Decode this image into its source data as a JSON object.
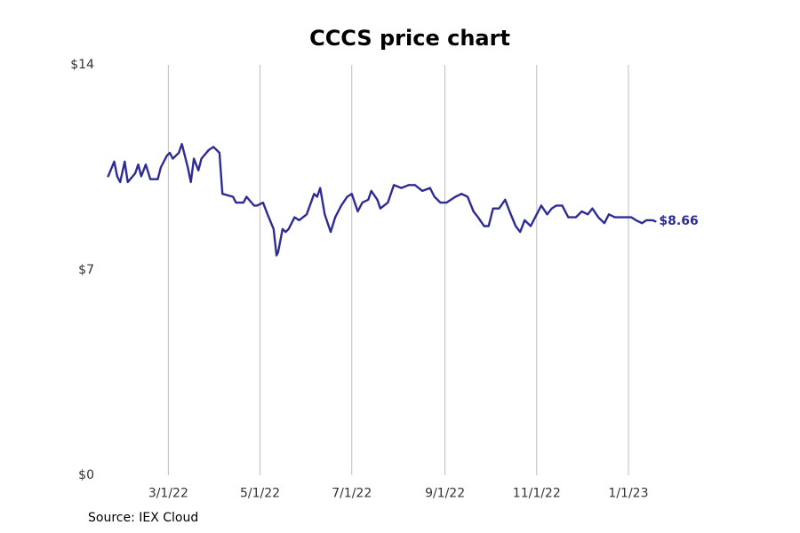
{
  "chart_data": {
    "type": "line",
    "title": "CCCS price chart",
    "source": "Source: IEX Cloud",
    "ylim": [
      0,
      14
    ],
    "y_ticks": [
      {
        "value": 0,
        "label": "$0"
      },
      {
        "value": 7,
        "label": "$7"
      },
      {
        "value": 14,
        "label": "$14"
      }
    ],
    "x_range": [
      "2022-01-19",
      "2023-02-25"
    ],
    "x_ticks": [
      {
        "date": "2022-03-01",
        "label": "3/1/22"
      },
      {
        "date": "2022-05-01",
        "label": "5/1/22"
      },
      {
        "date": "2022-07-01",
        "label": "7/1/22"
      },
      {
        "date": "2022-09-01",
        "label": "9/1/22"
      },
      {
        "date": "2022-11-01",
        "label": "11/1/22"
      },
      {
        "date": "2023-01-01",
        "label": "1/1/23"
      }
    ],
    "grid": "vertical",
    "series": [
      {
        "color": "#2e2b96",
        "end_label": "$8.66",
        "points": [
          [
            "2022-01-20",
            10.2
          ],
          [
            "2022-01-24",
            10.7
          ],
          [
            "2022-01-26",
            10.2
          ],
          [
            "2022-01-28",
            10.0
          ],
          [
            "2022-01-31",
            10.7
          ],
          [
            "2022-02-02",
            10.0
          ],
          [
            "2022-02-07",
            10.3
          ],
          [
            "2022-02-09",
            10.6
          ],
          [
            "2022-02-11",
            10.2
          ],
          [
            "2022-02-14",
            10.6
          ],
          [
            "2022-02-17",
            10.1
          ],
          [
            "2022-02-22",
            10.1
          ],
          [
            "2022-02-24",
            10.5
          ],
          [
            "2022-02-28",
            10.9
          ],
          [
            "2022-03-02",
            11.0
          ],
          [
            "2022-03-04",
            10.8
          ],
          [
            "2022-03-08",
            11.0
          ],
          [
            "2022-03-10",
            11.3
          ],
          [
            "2022-03-14",
            10.5
          ],
          [
            "2022-03-16",
            10.0
          ],
          [
            "2022-03-18",
            10.8
          ],
          [
            "2022-03-21",
            10.4
          ],
          [
            "2022-03-23",
            10.8
          ],
          [
            "2022-03-28",
            11.1
          ],
          [
            "2022-03-31",
            11.2
          ],
          [
            "2022-04-04",
            11.0
          ],
          [
            "2022-04-06",
            9.6
          ],
          [
            "2022-04-13",
            9.5
          ],
          [
            "2022-04-15",
            9.3
          ],
          [
            "2022-04-20",
            9.3
          ],
          [
            "2022-04-22",
            9.5
          ],
          [
            "2022-04-27",
            9.2
          ],
          [
            "2022-04-29",
            9.2
          ],
          [
            "2022-05-03",
            9.3
          ],
          [
            "2022-05-06",
            8.9
          ],
          [
            "2022-05-10",
            8.4
          ],
          [
            "2022-05-12",
            7.5
          ],
          [
            "2022-05-13",
            7.6
          ],
          [
            "2022-05-16",
            8.4
          ],
          [
            "2022-05-18",
            8.3
          ],
          [
            "2022-05-20",
            8.4
          ],
          [
            "2022-05-24",
            8.8
          ],
          [
            "2022-05-27",
            8.7
          ],
          [
            "2022-06-01",
            8.9
          ],
          [
            "2022-06-06",
            9.6
          ],
          [
            "2022-06-08",
            9.5
          ],
          [
            "2022-06-10",
            9.8
          ],
          [
            "2022-06-13",
            8.9
          ],
          [
            "2022-06-17",
            8.3
          ],
          [
            "2022-06-20",
            8.8
          ],
          [
            "2022-06-24",
            9.2
          ],
          [
            "2022-06-28",
            9.5
          ],
          [
            "2022-07-01",
            9.6
          ],
          [
            "2022-07-05",
            9.0
          ],
          [
            "2022-07-08",
            9.3
          ],
          [
            "2022-07-12",
            9.4
          ],
          [
            "2022-07-14",
            9.7
          ],
          [
            "2022-07-18",
            9.4
          ],
          [
            "2022-07-20",
            9.1
          ],
          [
            "2022-07-25",
            9.3
          ],
          [
            "2022-07-29",
            9.9
          ],
          [
            "2022-08-03",
            9.8
          ],
          [
            "2022-08-08",
            9.9
          ],
          [
            "2022-08-12",
            9.9
          ],
          [
            "2022-08-17",
            9.7
          ],
          [
            "2022-08-22",
            9.8
          ],
          [
            "2022-08-25",
            9.5
          ],
          [
            "2022-08-29",
            9.3
          ],
          [
            "2022-09-02",
            9.3
          ],
          [
            "2022-09-08",
            9.5
          ],
          [
            "2022-09-12",
            9.6
          ],
          [
            "2022-09-16",
            9.5
          ],
          [
            "2022-09-20",
            9.0
          ],
          [
            "2022-09-23",
            8.8
          ],
          [
            "2022-09-27",
            8.5
          ],
          [
            "2022-09-30",
            8.5
          ],
          [
            "2022-10-03",
            9.1
          ],
          [
            "2022-10-07",
            9.1
          ],
          [
            "2022-10-11",
            9.4
          ],
          [
            "2022-10-14",
            9.0
          ],
          [
            "2022-10-18",
            8.5
          ],
          [
            "2022-10-21",
            8.3
          ],
          [
            "2022-10-24",
            8.7
          ],
          [
            "2022-10-28",
            8.5
          ],
          [
            "2022-11-01",
            8.9
          ],
          [
            "2022-11-04",
            9.2
          ],
          [
            "2022-11-08",
            8.9
          ],
          [
            "2022-11-11",
            9.1
          ],
          [
            "2022-11-14",
            9.2
          ],
          [
            "2022-11-18",
            9.2
          ],
          [
            "2022-11-22",
            8.8
          ],
          [
            "2022-11-27",
            8.8
          ],
          [
            "2022-12-01",
            9.0
          ],
          [
            "2022-12-05",
            8.9
          ],
          [
            "2022-12-08",
            9.1
          ],
          [
            "2022-12-12",
            8.8
          ],
          [
            "2022-12-16",
            8.6
          ],
          [
            "2022-12-19",
            8.9
          ],
          [
            "2022-12-23",
            8.8
          ],
          [
            "2022-12-28",
            8.8
          ],
          [
            "2022-12-30",
            8.8
          ],
          [
            "2023-01-03",
            8.8
          ],
          [
            "2023-01-06",
            8.7
          ],
          [
            "2023-01-10",
            8.6
          ],
          [
            "2023-01-13",
            8.7
          ],
          [
            "2023-01-17",
            8.7
          ],
          [
            "2023-01-19",
            8.66
          ]
        ]
      }
    ]
  }
}
